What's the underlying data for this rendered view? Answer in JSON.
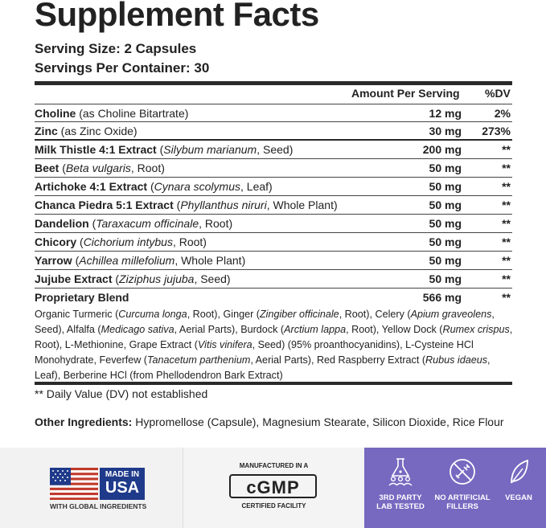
{
  "title": "Supplement Facts",
  "serving_size": "Serving Size: 2 Capsules",
  "servings_per_container": "Servings Per Container: 30",
  "header": {
    "amount": "Amount Per Serving",
    "dv": "%DV"
  },
  "rows": [
    {
      "name": "Choline",
      "detail": "(as Choline Bitartrate)",
      "amount": "12 mg",
      "dv": "2%"
    },
    {
      "name": "Zinc",
      "detail": "(as Zinc Oxide)",
      "amount": "30 mg",
      "dv": "273%"
    },
    {
      "name": "Milk Thistle 4:1 Extract",
      "detail_pre": "(",
      "detail_italic": "Silybum marianum",
      "detail_post": ", Seed)",
      "amount": "200 mg",
      "dv": "**"
    },
    {
      "name": "Beet",
      "detail_pre": "(",
      "detail_italic": "Beta vulgaris",
      "detail_post": ", Root)",
      "amount": "50 mg",
      "dv": "**"
    },
    {
      "name": "Artichoke 4:1 Extract",
      "detail_pre": "(",
      "detail_italic": "Cynara scolymus",
      "detail_post": ", Leaf)",
      "amount": "50 mg",
      "dv": "**"
    },
    {
      "name": "Chanca Piedra 5:1 Extract",
      "detail_pre": "(",
      "detail_italic": "Phyllanthus niruri",
      "detail_post": ", Whole Plant)",
      "amount": "50 mg",
      "dv": "**"
    },
    {
      "name": "Dandelion",
      "detail_pre": "(",
      "detail_italic": "Taraxacum officinale",
      "detail_post": ", Root)",
      "amount": "50 mg",
      "dv": "**"
    },
    {
      "name": "Chicory",
      "detail_pre": "(",
      "detail_italic": "Cichorium intybus",
      "detail_post": ", Root)",
      "amount": "50 mg",
      "dv": "**"
    },
    {
      "name": "Yarrow",
      "detail_pre": "(",
      "detail_italic": "Achillea millefolium",
      "detail_post": ", Whole Plant)",
      "amount": "50 mg",
      "dv": "**"
    },
    {
      "name": "Jujube Extract",
      "detail_pre": "(",
      "detail_italic": "Ziziphus jujuba",
      "detail_post": ", Seed)",
      "amount": "50 mg",
      "dv": "**"
    },
    {
      "name": "Proprietary Blend",
      "amount": "566 mg",
      "dv": "**"
    }
  ],
  "blend": {
    "p1": "Organic Turmeric (",
    "i1": "Curcuma longa",
    "p2": ", Root), Ginger (",
    "i2": "Zingiber officinale",
    "p3": ", Root), Celery (",
    "i3": "Apium graveolens",
    "p4": ", Seed), Alfalfa (",
    "i4": "Medicago sativa",
    "p5": ", Aerial Parts), Burdock (",
    "i5": "Arctium lappa",
    "p6": ", Root), Yellow Dock (",
    "i6": "Rumex crispus",
    "p7": ", Root), L-Methionine, Grape Extract (",
    "i7": "Vitis vinifera",
    "p8": ", Seed) (95% proanthocyanidins), L-Cysteine HCl Monohydrate, Feverfew (",
    "i8": "Tanacetum parthenium",
    "p9": ", Aerial Parts), Red Raspberry Extract (",
    "i9": "Rubus idaeus",
    "p10": ", Leaf), Berberine HCl (from Phellodendron Bark Extract)"
  },
  "footnote": "** Daily Value (DV) not established",
  "other": {
    "label": "Other Ingredients:",
    "text": " Hypromellose (Capsule), Magnesium Stearate, Silicon Dioxide, Rice Flour"
  },
  "badges": {
    "usa_line1": "MADE IN",
    "usa_line2": "USA",
    "usa_sub": "WITH GLOBAL INGREDIENTS",
    "cgmp_top": "MANUFACTURED IN A",
    "cgmp": "cGMP",
    "cgmp_bottom": "CERTIFIED FACILITY",
    "lab_1": "3RD PARTY",
    "lab_2": "LAB TESTED",
    "fill_1": "NO ARTIFICIAL",
    "fill_2": "FILLERS",
    "vegan": "VEGAN",
    "purple": "#7768c0",
    "flag_blue": "#1f3a8a",
    "flag_red": "#c0392b"
  }
}
